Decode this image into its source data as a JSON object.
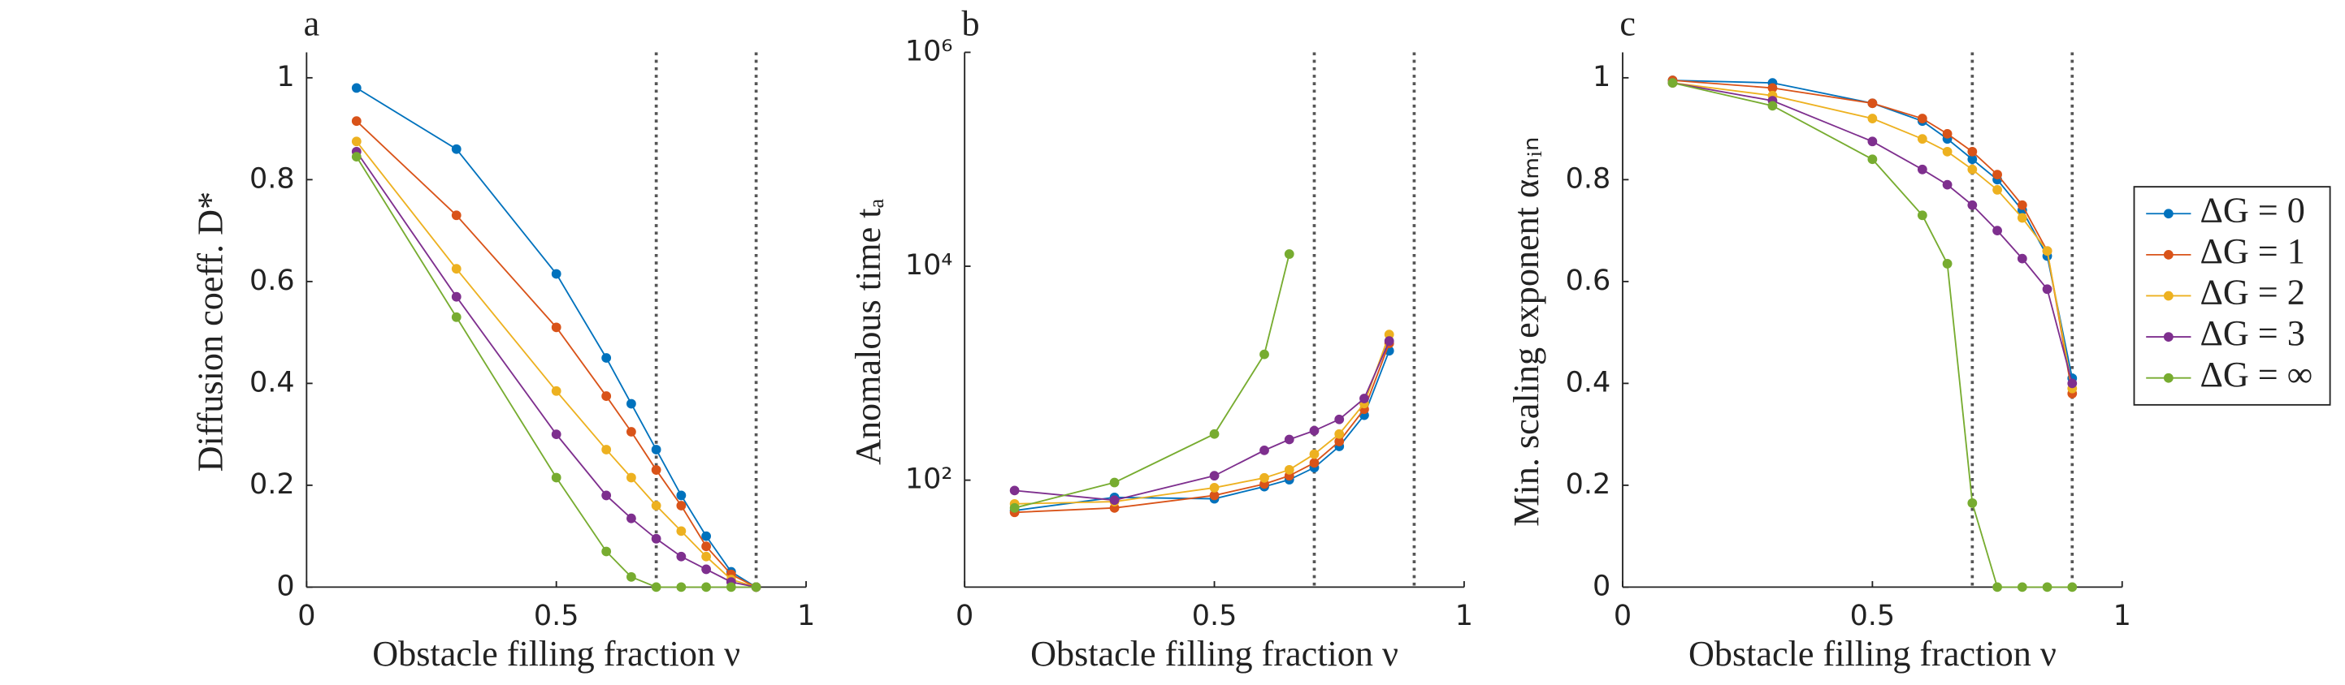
{
  "chart_data": [
    {
      "type": "line",
      "panel_label": "a",
      "xlabel": "Obstacle filling fraction ν",
      "ylabel": "Diffusion coeff. D*",
      "x": [
        0.1,
        0.3,
        0.5,
        0.6,
        0.65,
        0.7,
        0.75,
        0.8,
        0.85,
        0.9
      ],
      "xlim": [
        0,
        1
      ],
      "xticks": [
        0,
        0.5,
        1
      ],
      "ylim": [
        0,
        1.05
      ],
      "yticks": [
        0,
        0.2,
        0.4,
        0.6,
        0.8,
        1
      ],
      "vlines": [
        0.7,
        0.9
      ],
      "series": [
        {
          "color": "#0072bd",
          "values": [
            0.98,
            0.86,
            0.615,
            0.45,
            0.36,
            0.27,
            0.18,
            0.1,
            0.03,
            0
          ]
        },
        {
          "color": "#d95319",
          "values": [
            0.915,
            0.73,
            0.51,
            0.375,
            0.305,
            0.23,
            0.16,
            0.08,
            0.025,
            0
          ]
        },
        {
          "color": "#edb120",
          "values": [
            0.875,
            0.625,
            0.385,
            0.27,
            0.215,
            0.16,
            0.11,
            0.06,
            0.015,
            0
          ]
        },
        {
          "color": "#7e2f8e",
          "values": [
            0.855,
            0.57,
            0.3,
            0.18,
            0.135,
            0.095,
            0.06,
            0.035,
            0.01,
            0
          ]
        },
        {
          "color": "#77ac30",
          "values": [
            0.845,
            0.53,
            0.215,
            0.07,
            0.02,
            0,
            0,
            0,
            0,
            0
          ]
        }
      ]
    },
    {
      "type": "line",
      "panel_label": "b",
      "xlabel": "Obstacle filling fraction ν",
      "ylabel": "Anomalous time tₐ",
      "x": [
        0.1,
        0.3,
        0.5,
        0.6,
        0.65,
        0.7,
        0.75,
        0.8,
        0.85
      ],
      "xlim": [
        0,
        1
      ],
      "xticks": [
        0,
        0.5,
        1
      ],
      "ylim": [
        10,
        1000000
      ],
      "log_y": true,
      "yticks": [
        {
          "value": 100,
          "label": "10²"
        },
        {
          "value": 10000,
          "label": "10⁴"
        },
        {
          "value": 1000000,
          "label": "10⁶"
        }
      ],
      "vlines": [
        0.7,
        0.9
      ],
      "series": [
        {
          "color": "#0072bd",
          "values": [
            52,
            69,
            67,
            87,
            101,
            131,
            207,
            405,
            1620
          ]
        },
        {
          "color": "#d95319",
          "values": [
            50,
            55,
            72,
            92,
            110,
            145,
            230,
            460,
            1900
          ]
        },
        {
          "color": "#edb120",
          "values": [
            60,
            63,
            85,
            105,
            125,
            175,
            270,
            520,
            2300
          ]
        },
        {
          "color": "#7e2f8e",
          "values": [
            80,
            65,
            110,
            190,
            240,
            290,
            370,
            580,
            2000
          ]
        },
        {
          "color": "#77ac30",
          "values": [
            55,
            95,
            270,
            1500,
            13000,
            null,
            null,
            null,
            null
          ]
        }
      ]
    },
    {
      "type": "line",
      "panel_label": "c",
      "xlabel": "Obstacle filling fraction ν",
      "ylabel": "Min. scaling exponent αₘᵢₙ",
      "x": [
        0.1,
        0.3,
        0.5,
        0.6,
        0.65,
        0.7,
        0.75,
        0.8,
        0.85,
        0.9
      ],
      "xlim": [
        0,
        1
      ],
      "xticks": [
        0,
        0.5,
        1
      ],
      "ylim": [
        0,
        1.05
      ],
      "yticks": [
        0,
        0.2,
        0.4,
        0.6,
        0.8,
        1
      ],
      "vlines": [
        0.7,
        0.9
      ],
      "legend": "right-outside",
      "series": [
        {
          "name": "ΔG = 0",
          "color": "#0072bd",
          "values": [
            0.995,
            0.99,
            0.95,
            0.915,
            0.88,
            0.84,
            0.8,
            0.74,
            0.65,
            0.41
          ]
        },
        {
          "name": "ΔG = 1",
          "color": "#d95319",
          "values": [
            0.995,
            0.98,
            0.95,
            0.92,
            0.89,
            0.855,
            0.81,
            0.75,
            0.66,
            0.38
          ]
        },
        {
          "name": "ΔG = 2",
          "color": "#edb120",
          "values": [
            0.99,
            0.965,
            0.92,
            0.88,
            0.855,
            0.82,
            0.78,
            0.725,
            0.66,
            0.39
          ]
        },
        {
          "name": "ΔG = 3",
          "color": "#7e2f8e",
          "values": [
            0.99,
            0.955,
            0.875,
            0.82,
            0.79,
            0.75,
            0.7,
            0.645,
            0.585,
            0.4
          ]
        },
        {
          "name": "ΔG = ∞",
          "color": "#77ac30",
          "values": [
            0.99,
            0.945,
            0.84,
            0.73,
            0.635,
            0.165,
            0,
            0,
            0,
            0
          ]
        }
      ]
    }
  ]
}
